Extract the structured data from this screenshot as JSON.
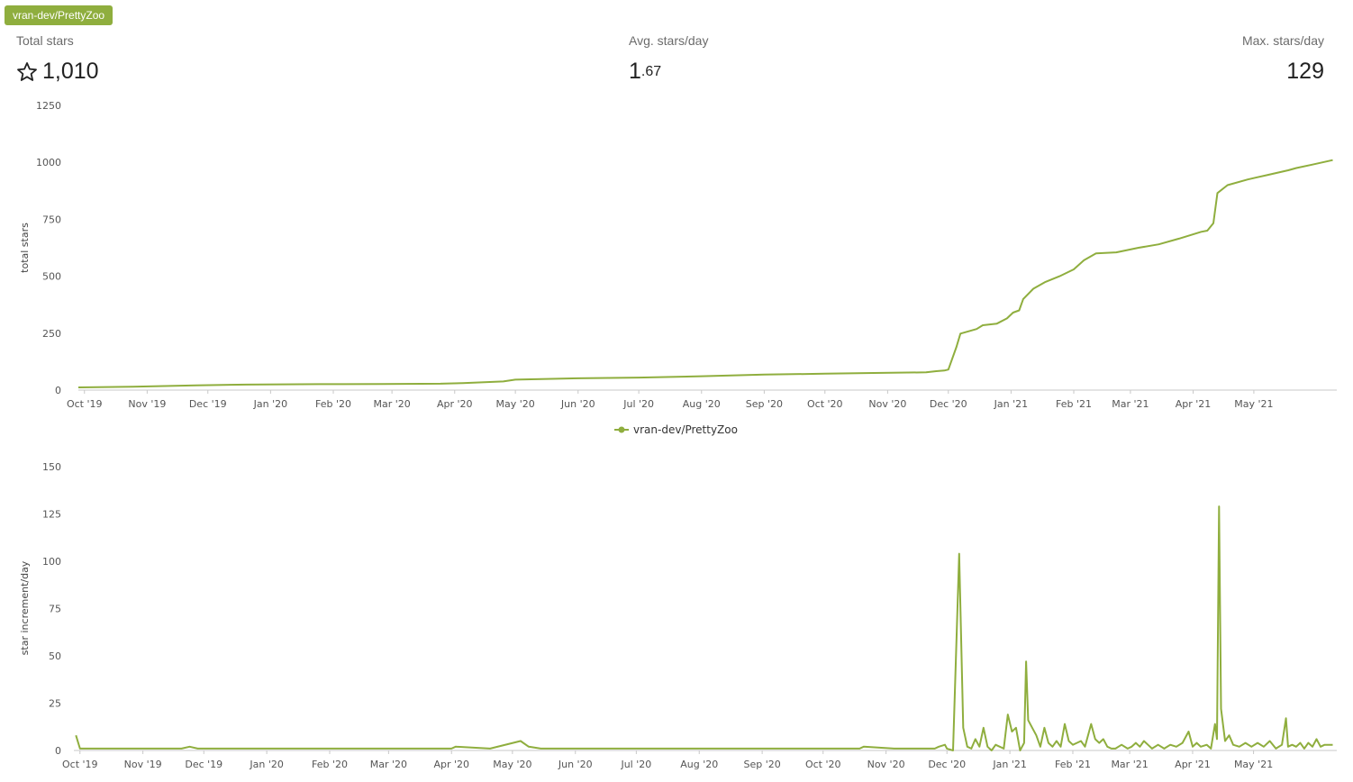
{
  "repo": {
    "name": "vran-dev/PrettyZoo"
  },
  "stats": {
    "total": {
      "label": "Total stars",
      "value": "1,010",
      "icon": "star-outline-icon"
    },
    "avg": {
      "label": "Avg. stars/day",
      "value_int": "1",
      "value_dec": ".67"
    },
    "max": {
      "label": "Max. stars/day",
      "value": "129"
    }
  },
  "legend": {
    "label": "vran-dev/PrettyZoo"
  },
  "colors": {
    "accent": "#8fae3e",
    "grid": "#e6e6e6",
    "axis": "#cccccc"
  },
  "chart_data": [
    {
      "type": "line",
      "title": "",
      "xlabel": "",
      "ylabel": "total stars",
      "ylim": [
        0,
        1250
      ],
      "yticks": [
        "0",
        "250",
        "500",
        "750",
        "1000",
        "1250"
      ],
      "xticks": [
        "Oct '19",
        "Nov '19",
        "Dec '19",
        "Jan '20",
        "Feb '20",
        "Mar '20",
        "Apr '20",
        "May '20",
        "Jun '20",
        "Jul '20",
        "Aug '20",
        "Sep '20",
        "Oct '20",
        "Nov '20",
        "Dec '20",
        "Jan '21",
        "Feb '21",
        "Mar '21",
        "Apr '21",
        "May '21"
      ],
      "grid": false,
      "x_start": "2019-09-28",
      "x_end": "2021-06-11",
      "series": [
        {
          "name": "vran-dev/PrettyZoo",
          "points": [
            [
              "2019-09-28",
              12
            ],
            [
              "2019-10-25",
              15
            ],
            [
              "2019-11-25",
              21
            ],
            [
              "2019-12-20",
              24
            ],
            [
              "2020-01-25",
              26
            ],
            [
              "2020-02-25",
              27
            ],
            [
              "2020-03-25",
              28
            ],
            [
              "2020-04-05",
              31
            ],
            [
              "2020-04-25",
              38
            ],
            [
              "2020-05-01",
              46
            ],
            [
              "2020-06-01",
              52
            ],
            [
              "2020-07-01",
              55
            ],
            [
              "2020-08-01",
              61
            ],
            [
              "2020-09-01",
              68
            ],
            [
              "2020-10-01",
              72
            ],
            [
              "2020-10-25",
              75
            ],
            [
              "2020-11-20",
              78
            ],
            [
              "2020-11-25",
              83
            ],
            [
              "2020-11-29",
              86
            ],
            [
              "2020-12-01",
              90
            ],
            [
              "2020-12-05",
              190
            ],
            [
              "2020-12-07",
              248
            ],
            [
              "2020-12-15",
              268
            ],
            [
              "2020-12-18",
              285
            ],
            [
              "2020-12-25",
              292
            ],
            [
              "2020-12-30",
              315
            ],
            [
              "2021-01-02",
              340
            ],
            [
              "2021-01-05",
              350
            ],
            [
              "2021-01-07",
              400
            ],
            [
              "2021-01-12",
              445
            ],
            [
              "2021-01-18",
              475
            ],
            [
              "2021-01-25",
              500
            ],
            [
              "2021-02-01",
              530
            ],
            [
              "2021-02-06",
              570
            ],
            [
              "2021-02-12",
              600
            ],
            [
              "2021-02-22",
              605
            ],
            [
              "2021-03-05",
              625
            ],
            [
              "2021-03-15",
              640
            ],
            [
              "2021-03-25",
              665
            ],
            [
              "2021-04-05",
              695
            ],
            [
              "2021-04-08",
              700
            ],
            [
              "2021-04-11",
              733
            ],
            [
              "2021-04-13",
              865
            ],
            [
              "2021-04-18",
              900
            ],
            [
              "2021-04-28",
              925
            ],
            [
              "2021-05-08",
              945
            ],
            [
              "2021-05-18",
              965
            ],
            [
              "2021-05-22",
              975
            ],
            [
              "2021-05-30",
              990
            ],
            [
              "2021-06-09",
              1010
            ]
          ]
        }
      ]
    },
    {
      "type": "line",
      "title": "",
      "xlabel": "",
      "ylabel": "star increment/day",
      "ylim": [
        0,
        150
      ],
      "yticks": [
        "0",
        "25",
        "50",
        "75",
        "100",
        "125",
        "150"
      ],
      "xticks": [
        "Oct '19",
        "Nov '19",
        "Dec '19",
        "Jan '20",
        "Feb '20",
        "Mar '20",
        "Apr '20",
        "May '20",
        "Jun '20",
        "Jul '20",
        "Aug '20",
        "Sep '20",
        "Oct '20",
        "Nov '20",
        "Dec '20",
        "Jan '21",
        "Feb '21",
        "Mar '21",
        "Apr '21",
        "May '21"
      ],
      "grid": false,
      "x_start": "2019-09-28",
      "x_end": "2021-06-11",
      "series": [
        {
          "name": "vran-dev/PrettyZoo",
          "points": [
            [
              "2019-09-29",
              8
            ],
            [
              "2019-10-01",
              1
            ],
            [
              "2019-11-20",
              1
            ],
            [
              "2019-11-24",
              2
            ],
            [
              "2019-11-28",
              1
            ],
            [
              "2020-04-01",
              1
            ],
            [
              "2020-04-03",
              2
            ],
            [
              "2020-04-20",
              1
            ],
            [
              "2020-05-05",
              5
            ],
            [
              "2020-05-09",
              2
            ],
            [
              "2020-05-15",
              1
            ],
            [
              "2020-10-19",
              1
            ],
            [
              "2020-10-21",
              2
            ],
            [
              "2020-11-05",
              1
            ],
            [
              "2020-11-25",
              1
            ],
            [
              "2020-11-27",
              2
            ],
            [
              "2020-11-30",
              3
            ],
            [
              "2020-12-01",
              1
            ],
            [
              "2020-12-04",
              0
            ],
            [
              "2020-12-07",
              104
            ],
            [
              "2020-12-09",
              12
            ],
            [
              "2020-12-11",
              2
            ],
            [
              "2020-12-13",
              1
            ],
            [
              "2020-12-15",
              6
            ],
            [
              "2020-12-17",
              2
            ],
            [
              "2020-12-19",
              12
            ],
            [
              "2020-12-21",
              2
            ],
            [
              "2020-12-23",
              0
            ],
            [
              "2020-12-25",
              3
            ],
            [
              "2020-12-27",
              2
            ],
            [
              "2020-12-29",
              1
            ],
            [
              "2020-12-31",
              19
            ],
            [
              "2021-01-02",
              10
            ],
            [
              "2021-01-04",
              12
            ],
            [
              "2021-01-06",
              0
            ],
            [
              "2021-01-08",
              4
            ],
            [
              "2021-01-09",
              47
            ],
            [
              "2021-01-10",
              16
            ],
            [
              "2021-01-12",
              12
            ],
            [
              "2021-01-14",
              8
            ],
            [
              "2021-01-16",
              2
            ],
            [
              "2021-01-18",
              12
            ],
            [
              "2021-01-20",
              4
            ],
            [
              "2021-01-22",
              2
            ],
            [
              "2021-01-24",
              5
            ],
            [
              "2021-01-26",
              2
            ],
            [
              "2021-01-28",
              14
            ],
            [
              "2021-01-30",
              5
            ],
            [
              "2021-02-01",
              3
            ],
            [
              "2021-02-03",
              4
            ],
            [
              "2021-02-05",
              5
            ],
            [
              "2021-02-07",
              2
            ],
            [
              "2021-02-10",
              14
            ],
            [
              "2021-02-12",
              6
            ],
            [
              "2021-02-14",
              4
            ],
            [
              "2021-02-16",
              6
            ],
            [
              "2021-02-18",
              2
            ],
            [
              "2021-02-20",
              1
            ],
            [
              "2021-02-22",
              1
            ],
            [
              "2021-02-25",
              3
            ],
            [
              "2021-02-28",
              1
            ],
            [
              "2021-03-02",
              2
            ],
            [
              "2021-03-04",
              4
            ],
            [
              "2021-03-06",
              2
            ],
            [
              "2021-03-08",
              5
            ],
            [
              "2021-03-10",
              3
            ],
            [
              "2021-03-12",
              1
            ],
            [
              "2021-03-15",
              3
            ],
            [
              "2021-03-18",
              1
            ],
            [
              "2021-03-21",
              3
            ],
            [
              "2021-03-24",
              2
            ],
            [
              "2021-03-27",
              4
            ],
            [
              "2021-03-30",
              10
            ],
            [
              "2021-04-01",
              2
            ],
            [
              "2021-04-03",
              4
            ],
            [
              "2021-04-05",
              2
            ],
            [
              "2021-04-08",
              3
            ],
            [
              "2021-04-10",
              1
            ],
            [
              "2021-04-12",
              14
            ],
            [
              "2021-04-13",
              6
            ],
            [
              "2021-04-14",
              129
            ],
            [
              "2021-04-15",
              22
            ],
            [
              "2021-04-17",
              5
            ],
            [
              "2021-04-19",
              8
            ],
            [
              "2021-04-21",
              3
            ],
            [
              "2021-04-24",
              2
            ],
            [
              "2021-04-27",
              4
            ],
            [
              "2021-04-30",
              2
            ],
            [
              "2021-05-03",
              4
            ],
            [
              "2021-05-06",
              2
            ],
            [
              "2021-05-09",
              5
            ],
            [
              "2021-05-12",
              1
            ],
            [
              "2021-05-15",
              3
            ],
            [
              "2021-05-17",
              17
            ],
            [
              "2021-05-18",
              2
            ],
            [
              "2021-05-20",
              3
            ],
            [
              "2021-05-22",
              2
            ],
            [
              "2021-05-24",
              4
            ],
            [
              "2021-05-26",
              1
            ],
            [
              "2021-05-28",
              4
            ],
            [
              "2021-05-30",
              2
            ],
            [
              "2021-06-01",
              6
            ],
            [
              "2021-06-03",
              2
            ],
            [
              "2021-06-05",
              3
            ],
            [
              "2021-06-09",
              3
            ]
          ]
        }
      ]
    }
  ]
}
